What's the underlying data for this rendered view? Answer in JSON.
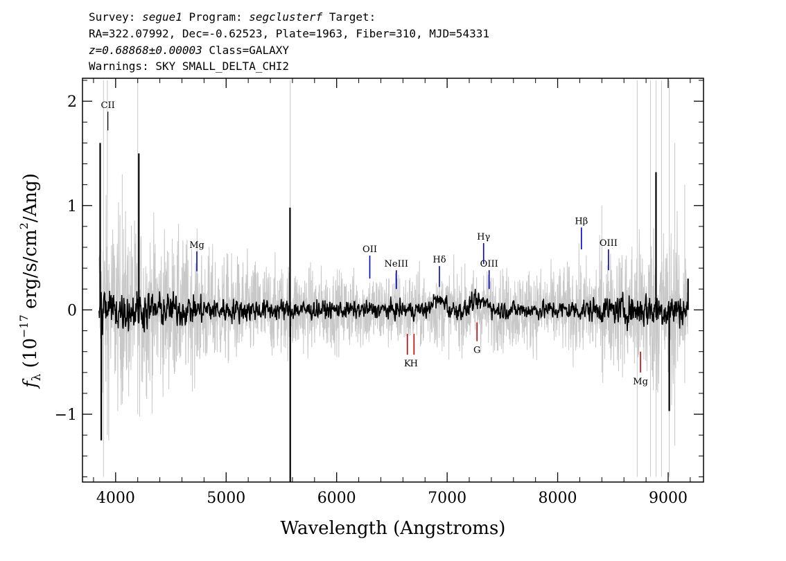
{
  "header": {
    "line1": {
      "survey_label": "Survey:",
      "survey": "segue1",
      "program_label": "Program:",
      "program": "segclusterf",
      "target_label": "Target:"
    },
    "line2": "RA=322.07992, Dec=-0.62523, Plate=1963, Fiber=310, MJD=54331",
    "line3": {
      "z": "z=0.68868±0.00003",
      "class": "Class=GALAXY"
    },
    "line4": "Warnings: SKY SMALL_DELTA_CHI2"
  },
  "chart_data": {
    "type": "line",
    "title": "",
    "xlabel": "Wavelength (Angstroms)",
    "ylabel": "f_λ (10^-17 erg/s/cm^2/Ang)",
    "xlim": [
      3700,
      9320
    ],
    "ylim": [
      -1.65,
      2.22
    ],
    "x_ticks": [
      4000,
      5000,
      6000,
      7000,
      8000,
      9000
    ],
    "x_tick_labels": [
      "4000",
      "5000",
      "6000",
      "7000",
      "8000",
      "9000"
    ],
    "y_ticks": [
      2,
      1,
      0,
      -1
    ],
    "y_tick_labels": [
      "2",
      "1",
      "0",
      "−1"
    ],
    "grid": false,
    "series": [
      {
        "color": "#c8c8c8",
        "x_range": [
          3850,
          9180
        ],
        "noise_profile": [
          [
            3850,
            0.55
          ],
          [
            4200,
            0.45
          ],
          [
            5000,
            0.28
          ],
          [
            6000,
            0.2
          ],
          [
            7000,
            0.2
          ],
          [
            8000,
            0.22
          ],
          [
            8500,
            0.3
          ],
          [
            8900,
            0.45
          ],
          [
            9180,
            0.35
          ]
        ]
      },
      {
        "color": "#000000",
        "x_range": [
          3850,
          9180
        ],
        "spikes": [
          [
            3860,
            1.6
          ],
          [
            3870,
            -1.25
          ],
          [
            4210,
            1.5
          ],
          [
            5578,
            0.98
          ],
          [
            5580,
            -1.65
          ],
          [
            8890,
            1.32
          ],
          [
            9010,
            -0.97
          ],
          [
            9180,
            0.3
          ]
        ]
      }
    ],
    "line_markers": [
      {
        "label": "CII",
        "x": 3930,
        "y1": 1.72,
        "y2": 1.9,
        "color": "#000000"
      },
      {
        "label": "Mg",
        "x": 4735,
        "y1": 0.37,
        "y2": 0.56,
        "color": "#0000cc"
      },
      {
        "label": "OII",
        "x": 6300,
        "y1": 0.3,
        "y2": 0.52,
        "color": "#0000cc"
      },
      {
        "label": "NeIII",
        "x": 6540,
        "y1": 0.2,
        "y2": 0.38,
        "color": "#0000cc"
      },
      {
        "label": "Hδ",
        "x": 6930,
        "y1": 0.22,
        "y2": 0.42,
        "color": "#0000cc"
      },
      {
        "label": "Hγ",
        "x": 7330,
        "y1": 0.44,
        "y2": 0.64,
        "color": "#0000cc"
      },
      {
        "label": "OIII",
        "x": 7380,
        "y1": 0.2,
        "y2": 0.38,
        "color": "#0000cc"
      },
      {
        "label": "Hβ",
        "x": 8215,
        "y1": 0.58,
        "y2": 0.79,
        "color": "#0000cc"
      },
      {
        "label": "OIII",
        "x": 8460,
        "y1": 0.38,
        "y2": 0.58,
        "color": "#0000cc"
      },
      {
        "label": "K",
        "x": 6640,
        "y1": -0.43,
        "y2": -0.23,
        "color": "#cc0000",
        "below": true
      },
      {
        "label": "H",
        "x": 6700,
        "y1": -0.43,
        "y2": -0.23,
        "color": "#cc0000",
        "below": true
      },
      {
        "label": "G",
        "x": 7270,
        "y1": -0.3,
        "y2": -0.12,
        "color": "#cc0000",
        "below": true
      },
      {
        "label": "Mg",
        "x": 8750,
        "y1": -0.6,
        "y2": -0.4,
        "color": "#cc0000",
        "below": true
      }
    ]
  }
}
